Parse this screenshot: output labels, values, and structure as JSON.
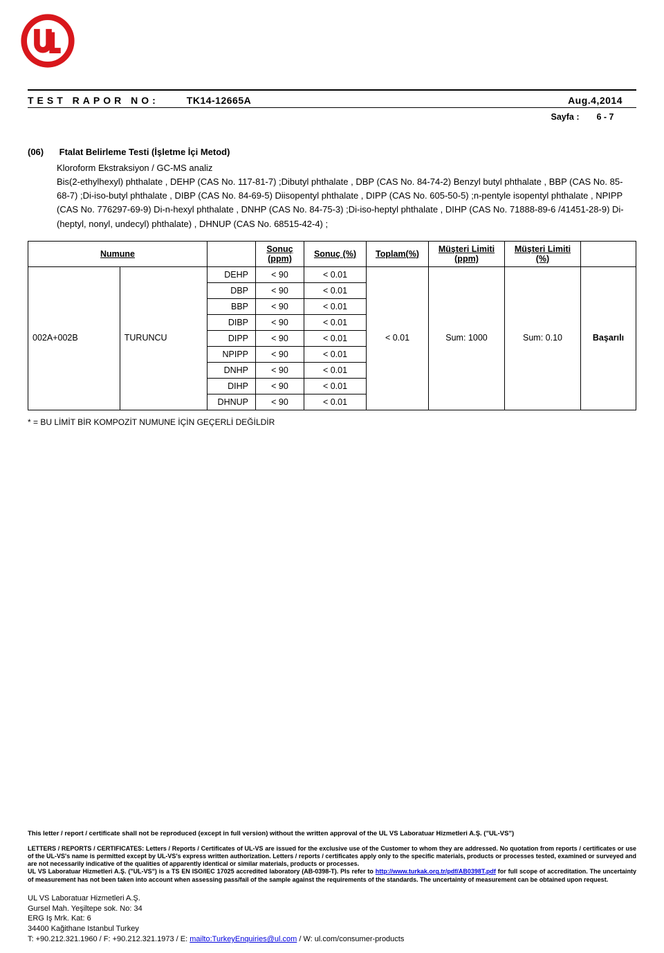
{
  "header": {
    "label": "TEST RAPOR NO:",
    "report_no": "TK14-12665A",
    "date": "Aug.4,2014",
    "page_label": "Sayfa :",
    "page_value": "6 - 7"
  },
  "section": {
    "index": "(06)",
    "title": "Ftalat Belirleme Testi  (İşletme İçi Metod)",
    "method_line": "Kloroform Ekstraksiyon / GC-MS analiz",
    "analytes_text": "Bis(2-ethylhexyl) phthalate , DEHP (CAS No. 117-81-7) ;Dibutyl phthalate , DBP (CAS No. 84-74-2) Benzyl butyl phthalate , BBP (CAS No. 85-68-7) ;Di-iso-butyl phthalate , DIBP (CAS No. 84-69-5) Diisopentyl phthalate , DIPP (CAS No. 605-50-5) ;n-pentyle isopentyl phthalate , NPIPP (CAS No. 776297-69-9) Di-n-hexyl phthalate , DNHP (CAS No. 84-75-3) ;Di-iso-heptyl phthalate , DIHP (CAS No. 71888-89-6 /41451-28-9) Di- (heptyl, nonyl, undecyl) phthalate) , DHNUP (CAS No. 68515-42-4) ;"
  },
  "table": {
    "headers": {
      "sample": "Numune",
      "result_ppm": "Sonuç (ppm)",
      "result_pct": "Sonuç  (%)",
      "total_pct": "Toplam(%)",
      "limit_ppm": "Müşteri Limiti (ppm)",
      "limit_pct": "Müşteri Limiti (%)"
    },
    "sample_id": "002A+002B",
    "sample_desc": "TURUNCU",
    "rows": [
      {
        "analyte": "DEHP",
        "ppm": "< 90",
        "pct": "< 0.01"
      },
      {
        "analyte": "DBP",
        "ppm": "< 90",
        "pct": "< 0.01"
      },
      {
        "analyte": "BBP",
        "ppm": "< 90",
        "pct": "< 0.01"
      },
      {
        "analyte": "DIBP",
        "ppm": "< 90",
        "pct": "< 0.01"
      },
      {
        "analyte": "DIPP",
        "ppm": "< 90",
        "pct": "< 0.01"
      },
      {
        "analyte": "NPIPP",
        "ppm": "< 90",
        "pct": "< 0.01"
      },
      {
        "analyte": "DNHP",
        "ppm": "< 90",
        "pct": "< 0.01"
      },
      {
        "analyte": "DIHP",
        "ppm": "< 90",
        "pct": "< 0.01"
      },
      {
        "analyte": "DHNUP",
        "ppm": "< 90",
        "pct": "< 0.01"
      }
    ],
    "total": "< 0.01",
    "limit_ppm": "Sum: 1000",
    "limit_pct": "Sum: 0.10",
    "result": "Başarılı"
  },
  "footnote": "* = BU LİMİT BİR KOMPOZİT NUMUNE İÇİN GEÇERLİ DEĞİLDİR",
  "footer": {
    "disclaimer": "This letter / report / certificate shall not be reproduced (except in full version) without the written approval of the UL VS Laboratuar Hizmetleri A.Ş. (\"UL-VS\")",
    "legal_1": "LETTERS / REPORTS / CERTIFICATES: Letters / Reports / Certificates of UL-VS are issued for the exclusive use of the Customer to whom they are addressed. No quotation from reports / certificates or use of the UL-VS's name is permitted except by UL-VS's express written authorization. Letters / reports / certificates apply only to the specific materials, products or processes tested, examined or surveyed and are not necessarily indicative of the qualities of apparently identical or similar materials, products or processes.",
    "legal_2a": "UL VS Laboratuar Hizmetleri A.Ş. (\"UL-VS\") is a TS EN ISO/IEC 17025 accredited laboratory (AB-0398-T). Pls refer to ",
    "legal_link": "http://www.turkak.org.tr/pdf/AB0398T.pdf",
    "legal_2b": " for full scope of accreditation.  The uncertainty of measurement has not been taken into account when assessing pass/fail of the sample against the requirements of the standards. The uncertainty of measurement can be obtained upon request.",
    "addr_1": "UL VS Laboratuar Hizmetleri A.Ş.",
    "addr_2": "Gursel Mah. Yeşiltepe sok. No: 34",
    "addr_3": "ERG Iş Mrk. Kat: 6",
    "addr_4": "34400 Kağithane Istanbul  Turkey",
    "contact_prefix": "T: +90.212.321.1960 / F: +90.212.321.1973 / E: ",
    "contact_email": "mailto:TurkeyEnquiries@ul.com",
    "contact_suffix": " / W: ul.com/consumer-products"
  },
  "colors": {
    "logo_red": "#d8171c",
    "link_blue": "#0000dd"
  }
}
